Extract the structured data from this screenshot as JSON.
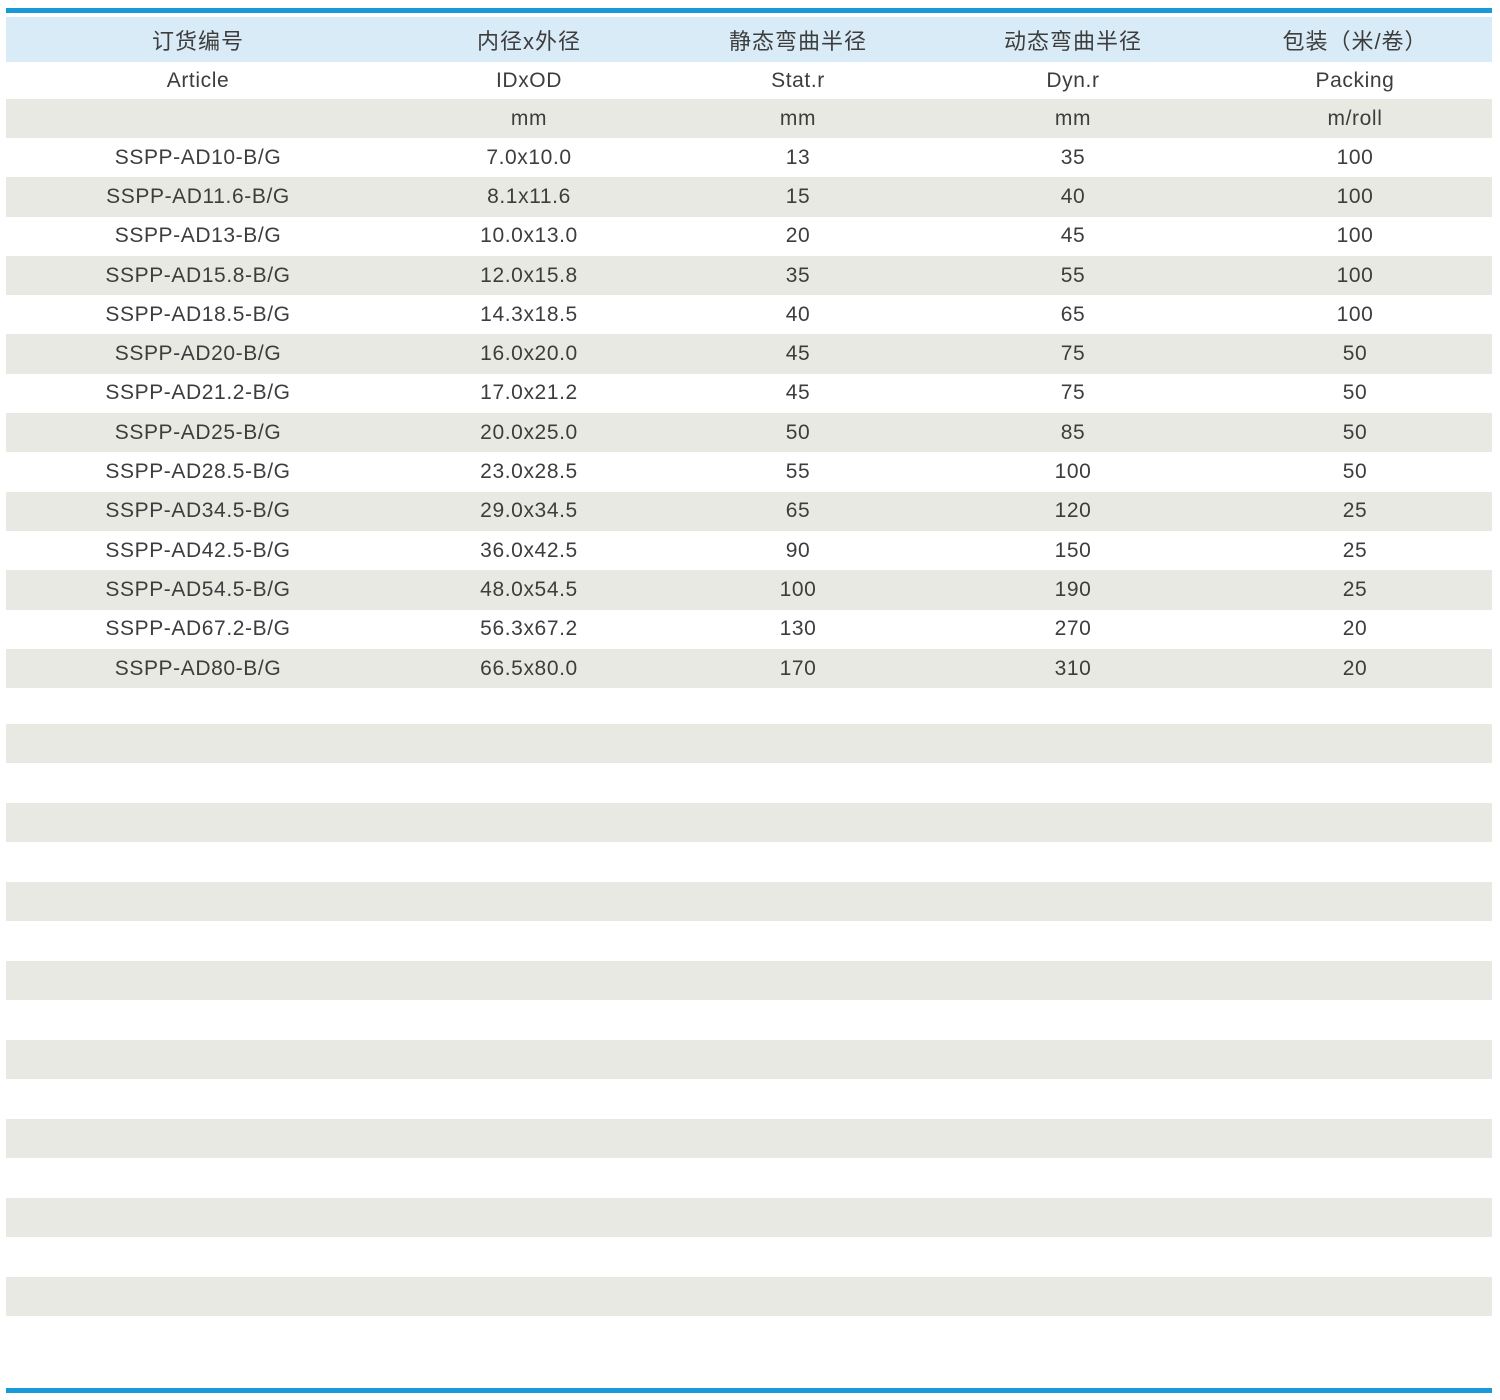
{
  "colors": {
    "accent_blue": "#1899d8",
    "header_bg": "#d9ebf7",
    "stripe_bg": "#e9e9e4",
    "text": "#3d3d3d"
  },
  "table": {
    "columns": [
      {
        "zh": "订货编号",
        "en": "Article",
        "unit": ""
      },
      {
        "zh": "内径x外径",
        "en": "IDxOD",
        "unit": "mm"
      },
      {
        "zh": "静态弯曲半径",
        "en": "Stat.r",
        "unit": "mm"
      },
      {
        "zh": "动态弯曲半径",
        "en": "Dyn.r",
        "unit": "mm"
      },
      {
        "zh": "包装（米/卷）",
        "en": "Packing",
        "unit": "m/roll"
      }
    ],
    "rows": [
      [
        "SSPP-AD10-B/G",
        "7.0x10.0",
        "13",
        "35",
        "100"
      ],
      [
        "SSPP-AD11.6-B/G",
        "8.1x11.6",
        "15",
        "40",
        "100"
      ],
      [
        "SSPP-AD13-B/G",
        "10.0x13.0",
        "20",
        "45",
        "100"
      ],
      [
        "SSPP-AD15.8-B/G",
        "12.0x15.8",
        "35",
        "55",
        "100"
      ],
      [
        "SSPP-AD18.5-B/G",
        "14.3x18.5",
        "40",
        "65",
        "100"
      ],
      [
        "SSPP-AD20-B/G",
        "16.0x20.0",
        "45",
        "75",
        "50"
      ],
      [
        "SSPP-AD21.2-B/G",
        "17.0x21.2",
        "45",
        "75",
        "50"
      ],
      [
        "SSPP-AD25-B/G",
        "20.0x25.0",
        "50",
        "85",
        "50"
      ],
      [
        "SSPP-AD28.5-B/G",
        "23.0x28.5",
        "55",
        "100",
        "50"
      ],
      [
        "SSPP-AD34.5-B/G",
        "29.0x34.5",
        "65",
        "120",
        "25"
      ],
      [
        "SSPP-AD42.5-B/G",
        "36.0x42.5",
        "90",
        "150",
        "25"
      ],
      [
        "SSPP-AD54.5-B/G",
        "48.0x54.5",
        "100",
        "190",
        "25"
      ],
      [
        "SSPP-AD67.2-B/G",
        "56.3x67.2",
        "130",
        "270",
        "20"
      ],
      [
        "SSPP-AD80-B/G",
        "66.5x80.0",
        "170",
        "310",
        "20"
      ]
    ]
  }
}
